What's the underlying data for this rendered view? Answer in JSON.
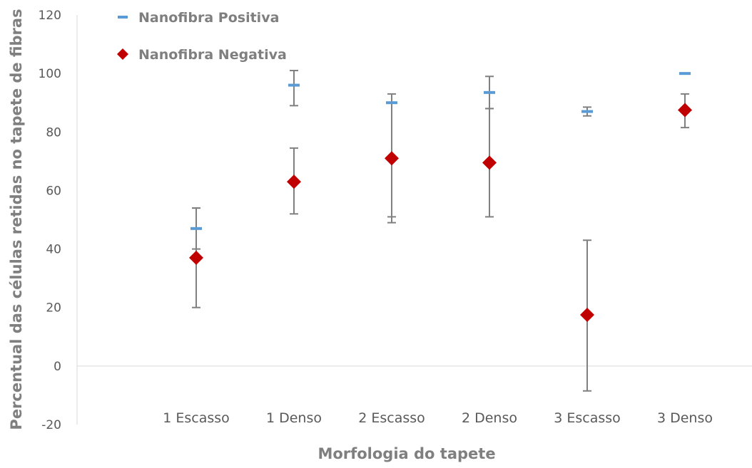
{
  "chart_data": {
    "type": "scatter",
    "title": "",
    "xlabel": "Morfologia do tapete",
    "ylabel": "Percentual das células retidas no tapete de fibras",
    "categories": [
      "1 Escasso",
      "1 Denso",
      "2 Escasso",
      "2 Denso",
      "3 Escasso",
      "3 Denso"
    ],
    "ylim": [
      -20,
      120
    ],
    "yticks": [
      -20,
      0,
      20,
      40,
      60,
      80,
      100,
      120
    ],
    "grid": false,
    "legend_position": "top-left",
    "series": [
      {
        "name": "Nanofibra Positiva",
        "marker": "dash",
        "color": "#5b9bd5",
        "errorbar_color": "#808080",
        "values": [
          47,
          96,
          90,
          93.5,
          87,
          100
        ],
        "error_low": [
          40,
          89,
          51,
          88,
          85.5,
          100
        ],
        "error_high": [
          54,
          101,
          90,
          99,
          88.5,
          100
        ]
      },
      {
        "name": "Nanofibra Negativa",
        "marker": "diamond",
        "color": "#c00000",
        "errorbar_color": "#808080",
        "values": [
          37,
          63,
          71,
          69.5,
          17.5,
          87.5
        ],
        "error_low": [
          20,
          52,
          49,
          51,
          -8.5,
          81.5
        ],
        "error_high": [
          54,
          74.5,
          93,
          88,
          43,
          93
        ]
      }
    ]
  }
}
